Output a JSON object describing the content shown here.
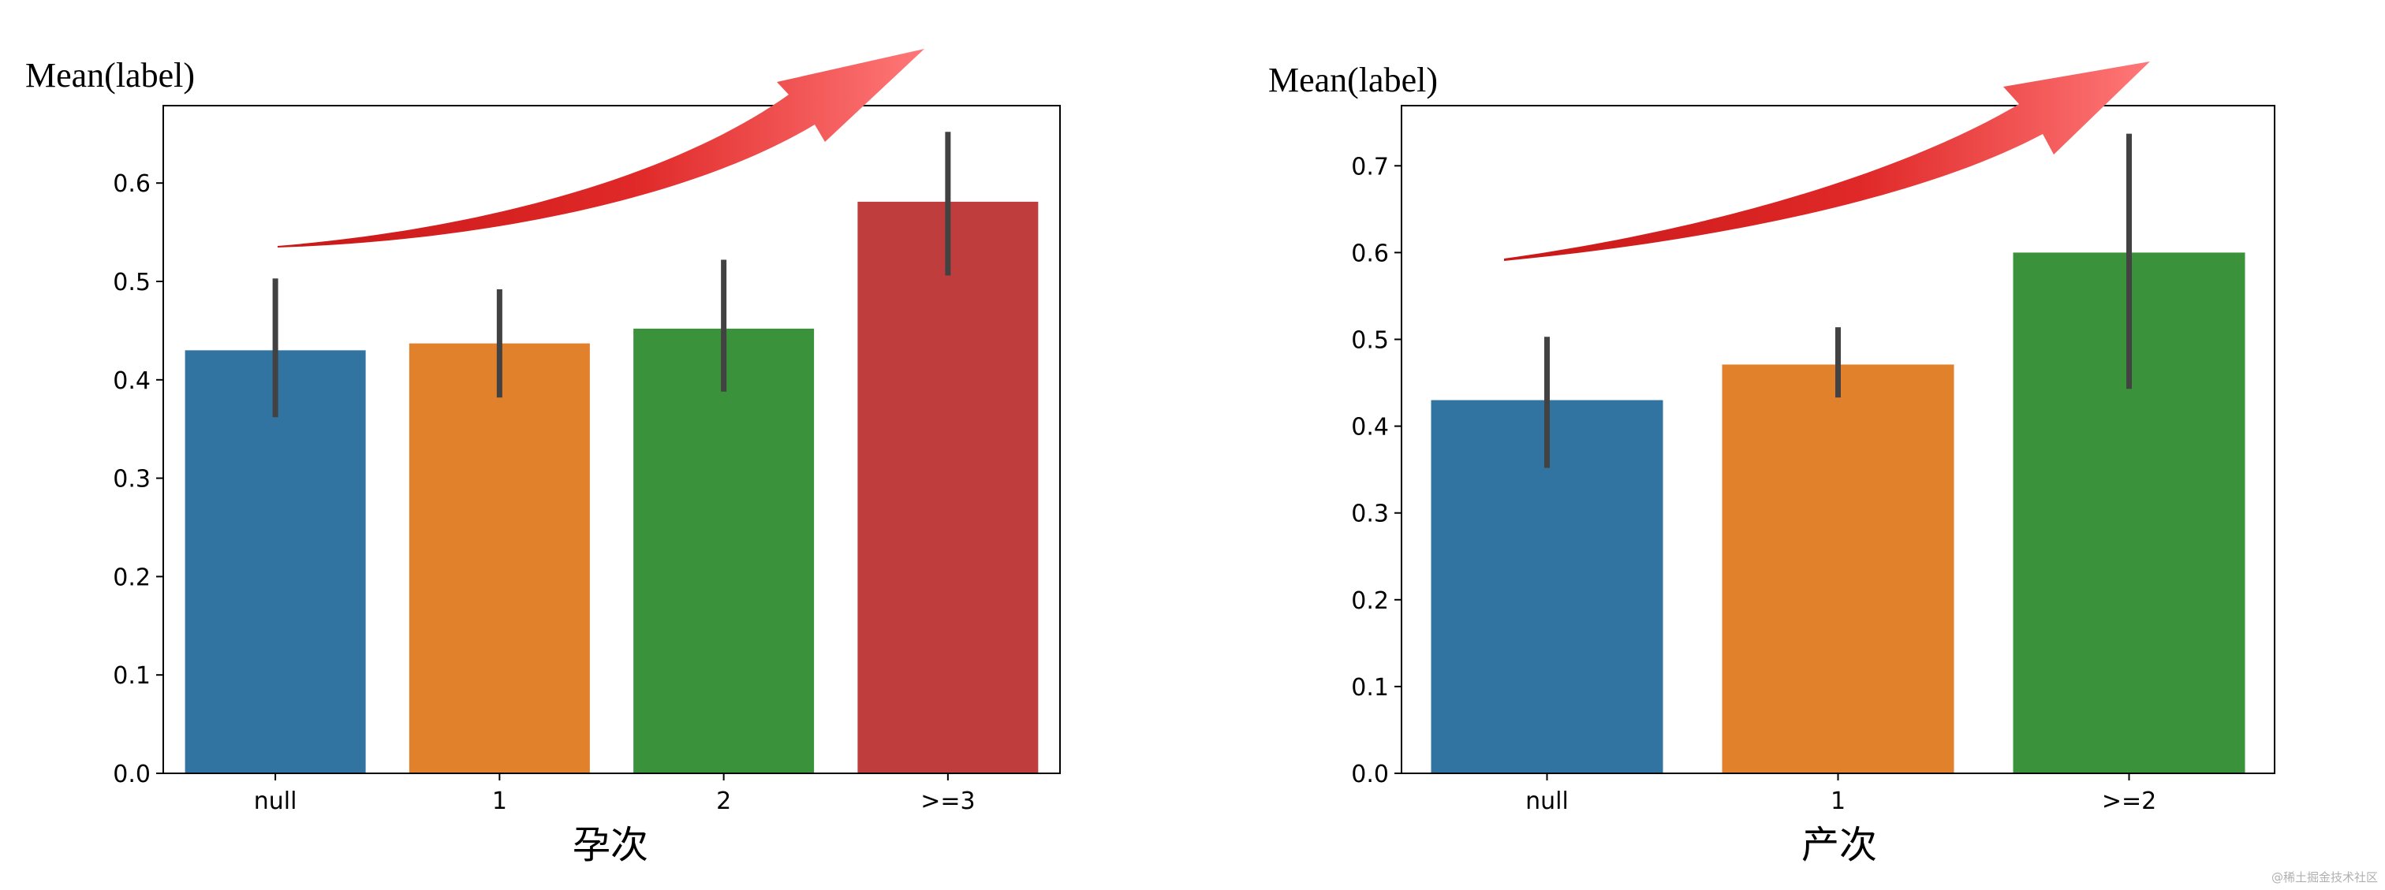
{
  "chart_data": [
    {
      "type": "bar",
      "title": "",
      "ylabel": "Mean(label)",
      "xlabel": "孕次",
      "categories": [
        "null",
        "1",
        "2",
        ">=3"
      ],
      "values": [
        0.43,
        0.437,
        0.452,
        0.581
      ],
      "error_low": [
        0.362,
        0.382,
        0.388,
        0.506
      ],
      "error_high": [
        0.503,
        0.492,
        0.522,
        0.652
      ],
      "colors": [
        "#3274a1",
        "#e1812c",
        "#3a923a",
        "#c03d3e"
      ],
      "ylim": [
        0,
        0.68
      ],
      "yticks": [
        0.0,
        0.1,
        0.2,
        0.3,
        0.4,
        0.5,
        0.6
      ],
      "ytick_labels": [
        "0.0",
        "0.1",
        "0.2",
        "0.3",
        "0.4",
        "0.5",
        "0.6"
      ],
      "grid": false,
      "annotation": "red upward trend arrow"
    },
    {
      "type": "bar",
      "title": "",
      "ylabel": "Mean(label)",
      "xlabel": "产次",
      "categories": [
        "null",
        "1",
        ">=2"
      ],
      "values": [
        0.43,
        0.471,
        0.6
      ],
      "error_low": [
        0.352,
        0.433,
        0.443
      ],
      "error_high": [
        0.503,
        0.514,
        0.737
      ],
      "colors": [
        "#3274a1",
        "#e1812c",
        "#3a923a"
      ],
      "ylim": [
        0,
        0.77
      ],
      "yticks": [
        0.0,
        0.1,
        0.2,
        0.3,
        0.4,
        0.5,
        0.6,
        0.7
      ],
      "ytick_labels": [
        "0.0",
        "0.1",
        "0.2",
        "0.3",
        "0.4",
        "0.5",
        "0.6",
        "0.7"
      ],
      "grid": false,
      "annotation": "red upward trend arrow"
    }
  ],
  "watermark": "@稀土掘金技术社区",
  "colors": {
    "axis": "#000000",
    "errorbar": "#424242",
    "arrow_dark": "#d42020",
    "arrow_light": "#ff7070"
  }
}
